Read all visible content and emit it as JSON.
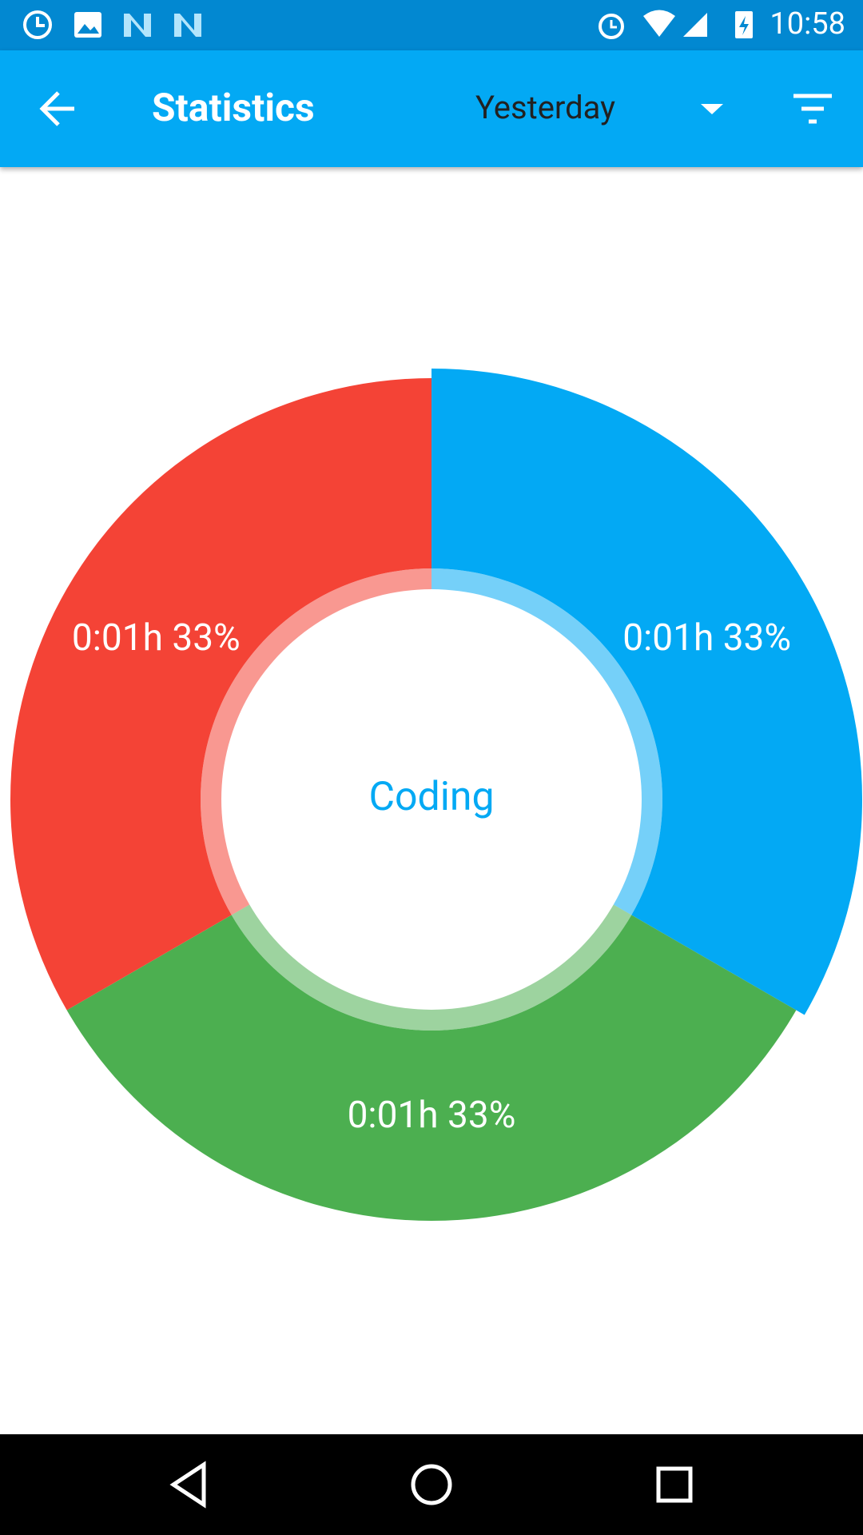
{
  "status_bar": {
    "time": "10:58"
  },
  "app_bar": {
    "title": "Statistics",
    "period": "Yesterday"
  },
  "chart_data": {
    "type": "donut",
    "values": [
      33,
      33,
      33
    ],
    "value_labels": [
      "0:01h 33%",
      "0:01h 33%",
      "0:01h 33%"
    ],
    "colors": [
      "#03a9f4",
      "#4caf50",
      "#f44336"
    ],
    "center_label": "Coding",
    "selected": 0
  }
}
